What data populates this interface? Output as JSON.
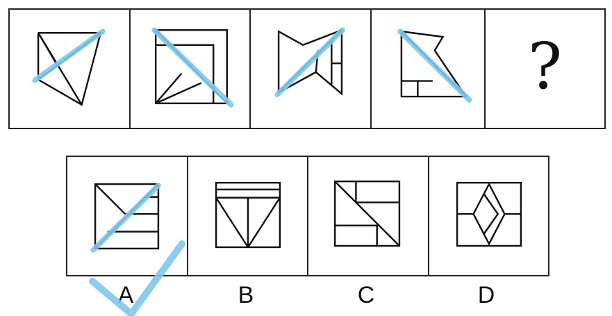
{
  "question": {
    "mark": "?"
  },
  "options": [
    {
      "label": "A"
    },
    {
      "label": "B"
    },
    {
      "label": "C"
    },
    {
      "label": "D"
    }
  ],
  "colors": {
    "line": "#111111",
    "highlight": "#7ec8ea"
  },
  "answer": "A"
}
